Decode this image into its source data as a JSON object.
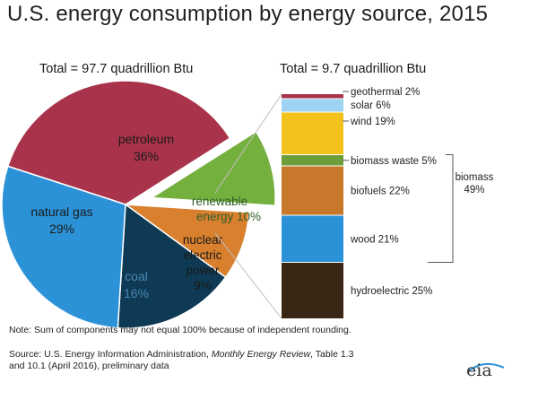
{
  "title": "U.S. energy consumption by energy source, 2015",
  "total_left": "Total = 97.7 quadrillion Btu",
  "total_right": "Total = 9.7 quadrillion Btu",
  "note": "Note: Sum of components may not equal 100% because of independent rounding.",
  "source": {
    "prefix": "Source: U.S. Energy Information Administration, ",
    "publication": "Monthly Energy Review",
    "suffix": ", Table 1.3",
    "line2": "and 10.1 (April 2016), preliminary data"
  },
  "logo": "eia",
  "chart_data": [
    {
      "type": "pie",
      "slices": [
        {
          "label": "petroleum",
          "value": 36,
          "value_text": "36%",
          "color": "#a8334a"
        },
        {
          "label": "renewable energy",
          "value": 10,
          "value_text": "10%",
          "color": "#74b03e",
          "exploded": true
        },
        {
          "label": "nuclear electric power",
          "value": 9,
          "value_text": "9%",
          "color": "#d8802e"
        },
        {
          "label": "coal",
          "value": 16,
          "value_text": "16%",
          "color": "#0e3a55"
        },
        {
          "label": "natural gas",
          "value": 29,
          "value_text": "29%",
          "color": "#2c92d8"
        }
      ]
    },
    {
      "type": "bar",
      "stacked": true,
      "segments": [
        {
          "label": "hydroelectric 25%",
          "value": 25,
          "color": "#3a2615"
        },
        {
          "label": "wood 21%",
          "value": 21,
          "color": "#2c92d8"
        },
        {
          "label": "biofuels 22%",
          "value": 22,
          "color": "#c8782a"
        },
        {
          "label": "biomass waste 5%",
          "value": 5,
          "color": "#6e9d3c"
        },
        {
          "label": "wind 19%",
          "value": 19,
          "color": "#f4c21c"
        },
        {
          "label": "solar 6%",
          "value": 6,
          "color": "#9ed4f2"
        },
        {
          "label": "geothermal 2%",
          "value": 2,
          "color": "#a8334a"
        }
      ],
      "bracket_label": [
        "biomass",
        "49%"
      ]
    }
  ]
}
